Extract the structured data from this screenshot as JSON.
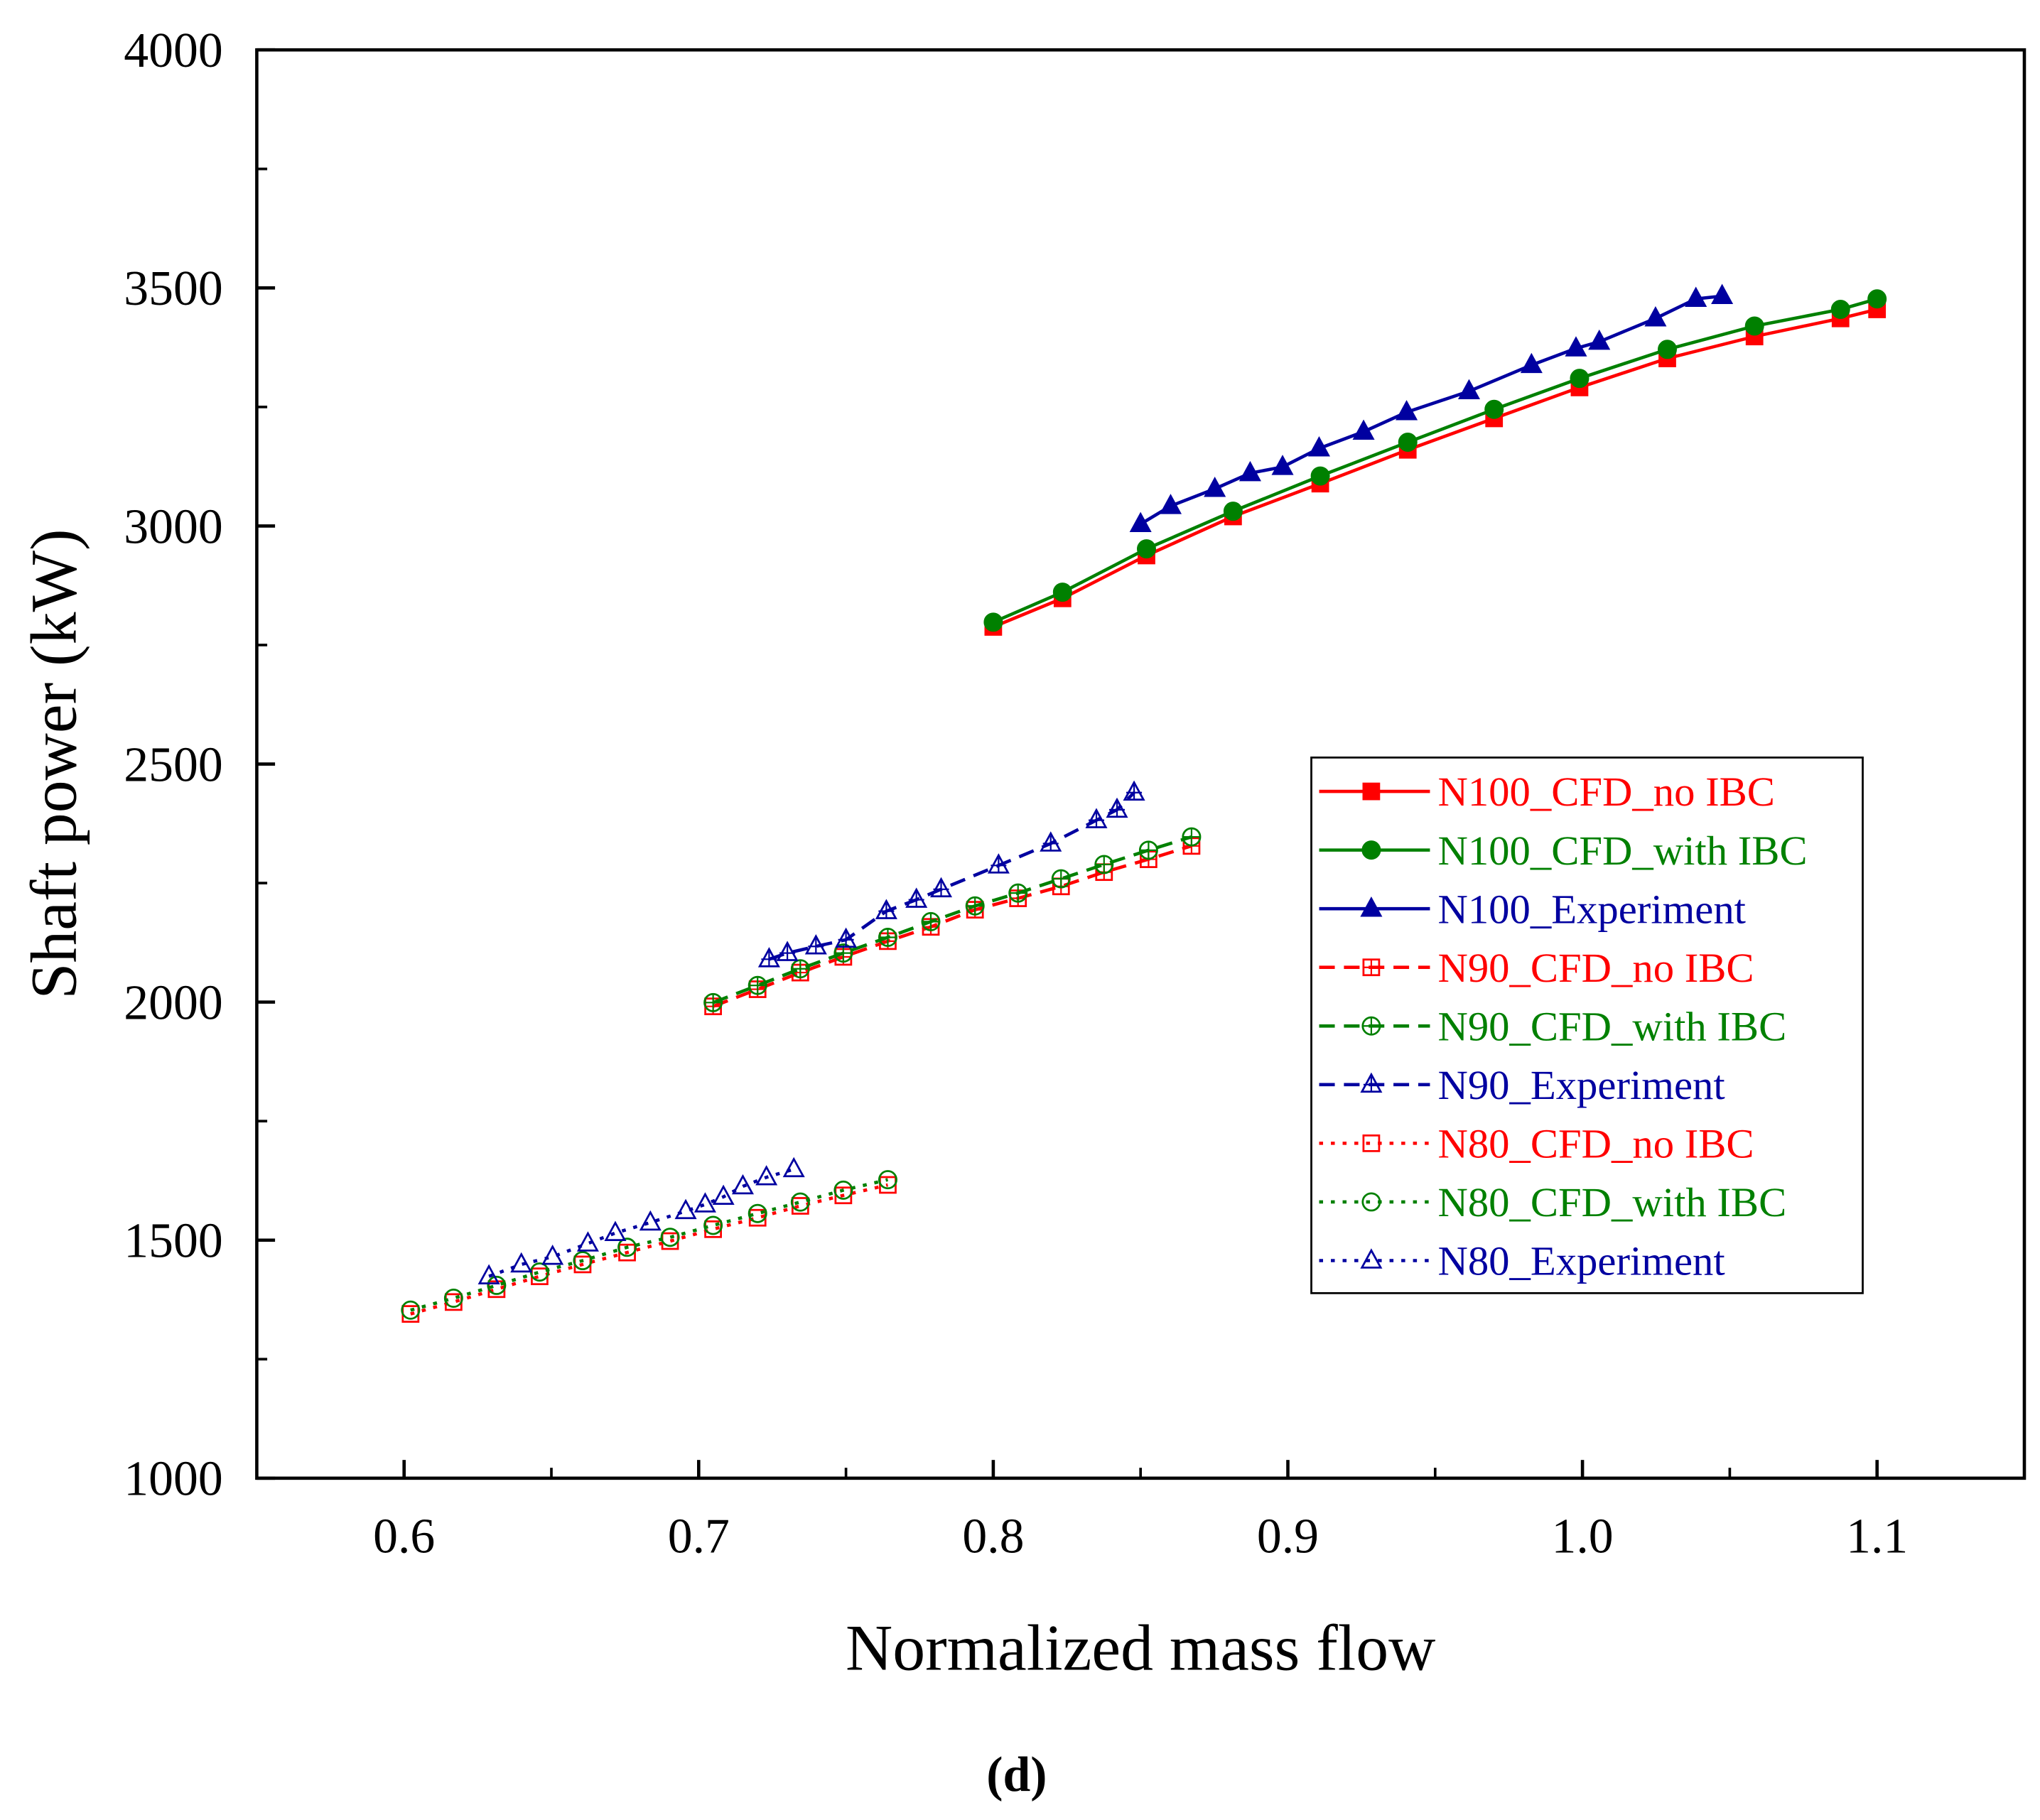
{
  "chart_data": {
    "type": "line",
    "title": "",
    "caption": "(d)",
    "xlabel": "Normalized mass flow",
    "ylabel": "Shaft power (kW)",
    "xlim": [
      0.55,
      1.15
    ],
    "ylim": [
      1000,
      4000
    ],
    "xticks": [
      0.6,
      0.7,
      0.8,
      0.9,
      1.0,
      1.1
    ],
    "xtick_labels": [
      "0.6",
      "0.7",
      "0.8",
      "0.9",
      "1.0",
      "1.1"
    ],
    "yticks": [
      1000,
      1500,
      2000,
      2500,
      3000,
      3500,
      4000
    ],
    "ytick_labels": [
      "1000",
      "1500",
      "2000",
      "2500",
      "3000",
      "3500",
      "4000"
    ],
    "grid": false,
    "legend_position": "center-right",
    "series": [
      {
        "name": "N100_CFD_no IBC",
        "color": "#ff0000",
        "dash": "solid",
        "marker": "square",
        "fill": true,
        "x": [
          0.8,
          0.8235,
          0.852,
          0.8814,
          0.911,
          0.9407,
          0.97,
          0.999,
          1.0288,
          1.0584,
          1.0876,
          1.1
        ],
        "y": [
          2788,
          2848,
          2938,
          3020,
          3089,
          3160,
          3226,
          3291,
          3352,
          3398,
          3436,
          3455
        ]
      },
      {
        "name": "N100_CFD_with IBC",
        "color": "#008000",
        "dash": "solid",
        "marker": "circle",
        "fill": true,
        "x": [
          0.8,
          0.8235,
          0.852,
          0.8814,
          0.911,
          0.9407,
          0.97,
          0.999,
          1.0288,
          1.0584,
          1.0876,
          1.1
        ],
        "y": [
          2798,
          2861,
          2952,
          3031,
          3105,
          3176,
          3245,
          3310,
          3371,
          3420,
          3455,
          3477
        ]
      },
      {
        "name": "N100_Experiment",
        "color": "#0000a0",
        "dash": "solid",
        "marker": "triangle",
        "fill": true,
        "x": [
          0.85,
          0.8602,
          0.8752,
          0.8872,
          0.8982,
          0.9106,
          0.9257,
          0.9403,
          0.9615,
          0.9827,
          0.9978,
          1.0057,
          1.0248,
          1.0385,
          1.0474
        ],
        "y": [
          3004,
          3042,
          3078,
          3111,
          3124,
          3163,
          3198,
          3239,
          3283,
          3338,
          3373,
          3387,
          3436,
          3477,
          3483
        ]
      },
      {
        "name": "N90_CFD_no IBC",
        "color": "#ff0000",
        "dash": "dashed",
        "marker": "square-plus",
        "fill": false,
        "x": [
          0.7049,
          0.72,
          0.7345,
          0.7491,
          0.7642,
          0.7788,
          0.7938,
          0.8084,
          0.823,
          0.8376,
          0.8527,
          0.8673
        ],
        "y": [
          1991,
          2027,
          2062,
          2095,
          2128,
          2158,
          2194,
          2218,
          2243,
          2273,
          2300,
          2328
        ]
      },
      {
        "name": "N90_CFD_with IBC",
        "color": "#008000",
        "dash": "dashed",
        "marker": "circle-plus",
        "fill": false,
        "x": [
          0.7049,
          0.72,
          0.7345,
          0.7491,
          0.7642,
          0.7788,
          0.7938,
          0.8084,
          0.823,
          0.8376,
          0.8527,
          0.8673
        ],
        "y": [
          1999,
          2035,
          2070,
          2103,
          2136,
          2169,
          2202,
          2229,
          2259,
          2289,
          2319,
          2347
        ]
      },
      {
        "name": "N90_Experiment",
        "color": "#0000a0",
        "dash": "dashed",
        "marker": "triangle-plus",
        "fill": false,
        "x": [
          0.7239,
          0.7301,
          0.7398,
          0.75,
          0.7637,
          0.7739,
          0.7823,
          0.8018,
          0.8195,
          0.835,
          0.842,
          0.8478
        ],
        "y": [
          2090,
          2103,
          2117,
          2131,
          2191,
          2215,
          2237,
          2287,
          2333,
          2382,
          2404,
          2440
        ]
      },
      {
        "name": "N80_CFD_no IBC",
        "color": "#ff0000",
        "dash": "dotted",
        "marker": "square",
        "fill": false,
        "x": [
          0.6022,
          0.6168,
          0.6314,
          0.646,
          0.6606,
          0.6757,
          0.6903,
          0.7049,
          0.72,
          0.7345,
          0.7491,
          0.7642
        ],
        "y": [
          1345,
          1370,
          1397,
          1424,
          1449,
          1474,
          1498,
          1523,
          1547,
          1572,
          1594,
          1616
        ]
      },
      {
        "name": "N80_CFD_with IBC",
        "color": "#008000",
        "dash": "dotted",
        "marker": "circle",
        "fill": false,
        "x": [
          0.6022,
          0.6168,
          0.6314,
          0.646,
          0.6606,
          0.6757,
          0.6903,
          0.7049,
          0.72,
          0.7345,
          0.7491,
          0.7642
        ],
        "y": [
          1353,
          1378,
          1405,
          1433,
          1457,
          1485,
          1506,
          1531,
          1556,
          1580,
          1605,
          1627
        ]
      },
      {
        "name": "N80_Experiment",
        "color": "#0000a0",
        "dash": "dotted",
        "marker": "triangle",
        "fill": false,
        "x": [
          0.6288,
          0.6398,
          0.6504,
          0.6624,
          0.6717,
          0.6836,
          0.6956,
          0.7022,
          0.7084,
          0.715,
          0.723,
          0.7323
        ],
        "y": [
          1424,
          1449,
          1465,
          1493,
          1515,
          1537,
          1561,
          1575,
          1591,
          1613,
          1632,
          1649
        ]
      }
    ]
  }
}
